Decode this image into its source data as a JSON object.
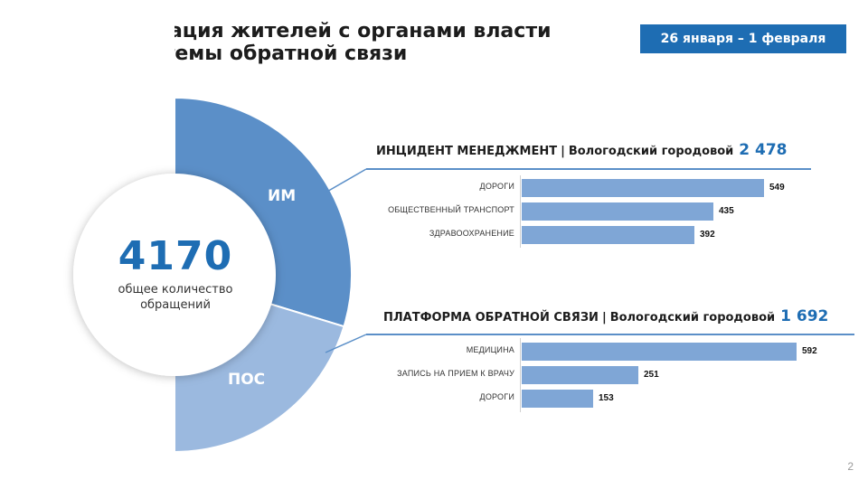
{
  "title": {
    "line1": "Коммуникация жителей с органами власти",
    "line2": "через системы обратной связи"
  },
  "date_range": "26 января – 1 февраля",
  "total": {
    "value": "4170",
    "label": "общее количество обращений"
  },
  "colors": {
    "accent": "#1e6db3",
    "segment_im": "#5b8fc8",
    "segment_pos": "#9bb9df",
    "bar": "#7fa6d6"
  },
  "chart_data": [
    {
      "type": "pie",
      "categories": [
        "ИМ",
        "ПОС"
      ],
      "values": [
        2478,
        1692
      ],
      "total": 4170
    },
    {
      "type": "bar",
      "orientation": "horizontal",
      "title": "ИНЦИДЕНТ МЕНЕДЖМЕНТ",
      "subtitle": "Вологодский городовой",
      "total": "2 478",
      "categories": [
        "ДОРОГИ",
        "ОБЩЕСТВЕННЫЙ ТРАНСПОРТ",
        "ЗДРАВООХРАНЕНИЕ"
      ],
      "values": [
        549,
        435,
        392
      ]
    },
    {
      "type": "bar",
      "orientation": "horizontal",
      "title": "ПЛАТФОРМА ОБРАТНОЙ СВЯЗИ",
      "subtitle": "Вологодский городовой",
      "total": "1 692",
      "categories": [
        "МЕДИЦИНА",
        "ЗАПИСЬ НА ПРИЕМ К ВРАЧУ",
        "ДОРОГИ"
      ],
      "values": [
        592,
        251,
        153
      ]
    }
  ],
  "page_number": "2"
}
